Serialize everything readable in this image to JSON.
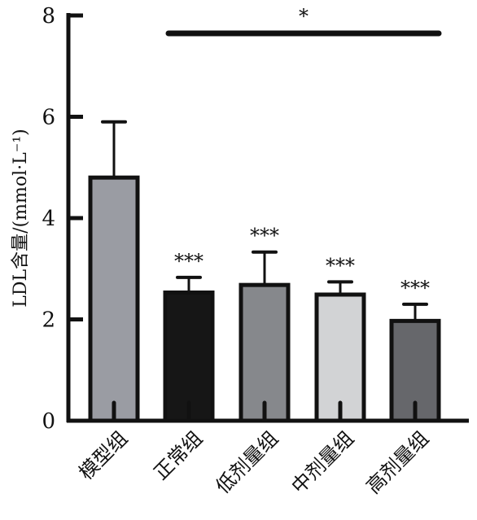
{
  "chart_data": {
    "type": "bar",
    "ylabel": "LDL含量/(mmol·L⁻¹)",
    "ylim": [
      0,
      8
    ],
    "yticks": [
      "0",
      "2",
      "4",
      "6",
      "8"
    ],
    "categories": [
      "模型组",
      "正常组",
      "低剂量组",
      "中剂量组",
      "高剂量组"
    ],
    "values": [
      4.8,
      2.53,
      2.68,
      2.49,
      1.97
    ],
    "errors": [
      1.1,
      0.3,
      0.65,
      0.25,
      0.33
    ],
    "significance": [
      "",
      "***",
      "***",
      "***",
      "***"
    ],
    "bracket_label": "*",
    "grid": false,
    "colors": [
      "#9a9ca3",
      "#161616",
      "#86888c",
      "#d2d3d5",
      "#66676b"
    ]
  }
}
